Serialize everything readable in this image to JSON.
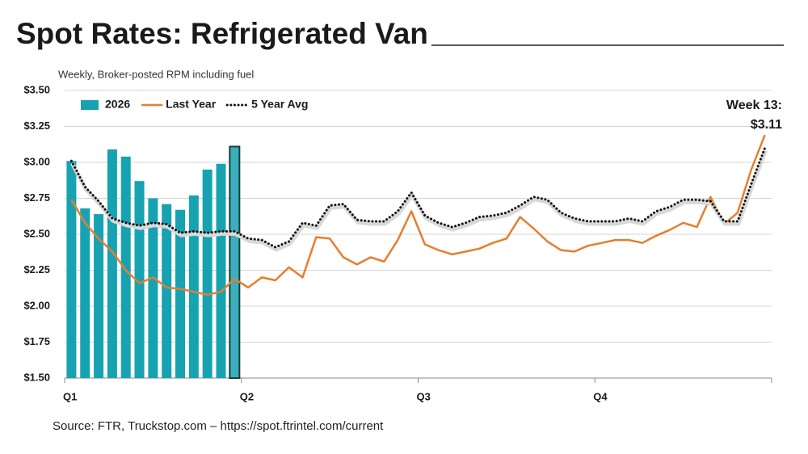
{
  "chart_data": {
    "type": "combo",
    "title": "Spot Rates: Refrigerated Van",
    "subtitle": "Weekly, Broker-posted RPM including fuel",
    "source": "Source: FTR, Truckstop.com – https://spot.ftrintel.com/current",
    "x": [
      1,
      2,
      3,
      4,
      5,
      6,
      7,
      8,
      9,
      10,
      11,
      12,
      13,
      14,
      15,
      16,
      17,
      18,
      19,
      20,
      21,
      22,
      23,
      24,
      25,
      26,
      27,
      28,
      29,
      30,
      31,
      32,
      33,
      34,
      35,
      36,
      37,
      38,
      39,
      40,
      41,
      42,
      43,
      44,
      45,
      46,
      47,
      48,
      49,
      50,
      51,
      52
    ],
    "xlim": [
      0.5,
      52.5
    ],
    "xticks": [
      {
        "value": 0.5,
        "label": "Q1"
      },
      {
        "value": 13.5,
        "label": "Q2"
      },
      {
        "value": 26.5,
        "label": "Q3"
      },
      {
        "value": 39.5,
        "label": "Q4"
      }
    ],
    "ylim": [
      1.5,
      3.5
    ],
    "yticks": [
      {
        "value": 1.5,
        "label": "$1.50"
      },
      {
        "value": 1.75,
        "label": "$1.75"
      },
      {
        "value": 2.0,
        "label": "$2.00"
      },
      {
        "value": 2.25,
        "label": "$2.25"
      },
      {
        "value": 2.5,
        "label": "$2.50"
      },
      {
        "value": 2.75,
        "label": "$2.75"
      },
      {
        "value": 3.0,
        "label": "$3.00"
      },
      {
        "value": 3.25,
        "label": "$3.25"
      },
      {
        "value": 3.5,
        "label": "$3.50"
      }
    ],
    "grid": true,
    "legend": "top-left",
    "series": [
      {
        "name": "2026",
        "type": "bar",
        "color": "#17a2b1",
        "values": [
          3.01,
          2.68,
          2.64,
          3.09,
          3.04,
          2.87,
          2.75,
          2.71,
          2.67,
          2.77,
          2.95,
          2.99,
          3.11,
          null,
          null,
          null,
          null,
          null,
          null,
          null,
          null,
          null,
          null,
          null,
          null,
          null,
          null,
          null,
          null,
          null,
          null,
          null,
          null,
          null,
          null,
          null,
          null,
          null,
          null,
          null,
          null,
          null,
          null,
          null,
          null,
          null,
          null,
          null,
          null,
          null,
          null,
          null
        ]
      },
      {
        "name": "Last Year",
        "type": "line",
        "color": "#e67e2e",
        "values": [
          2.74,
          2.58,
          2.47,
          2.38,
          2.25,
          2.16,
          2.2,
          2.13,
          2.12,
          2.1,
          2.08,
          2.1,
          2.19,
          2.13,
          2.2,
          2.18,
          2.27,
          2.2,
          2.48,
          2.47,
          2.34,
          2.29,
          2.34,
          2.31,
          2.46,
          2.66,
          2.43,
          2.39,
          2.36,
          2.38,
          2.4,
          2.44,
          2.47,
          2.62,
          2.54,
          2.45,
          2.39,
          2.38,
          2.42,
          2.44,
          2.46,
          2.46,
          2.44,
          2.49,
          2.53,
          2.58,
          2.55,
          2.76,
          2.57,
          2.65,
          2.95,
          3.19
        ]
      },
      {
        "name": "5 Year Avg",
        "type": "dotted",
        "color": "#111111",
        "values": [
          3.01,
          2.83,
          2.73,
          2.61,
          2.58,
          2.56,
          2.58,
          2.57,
          2.51,
          2.52,
          2.51,
          2.52,
          2.52,
          2.47,
          2.46,
          2.41,
          2.45,
          2.58,
          2.56,
          2.7,
          2.71,
          2.6,
          2.59,
          2.59,
          2.66,
          2.79,
          2.63,
          2.58,
          2.55,
          2.58,
          2.62,
          2.63,
          2.65,
          2.7,
          2.76,
          2.74,
          2.65,
          2.61,
          2.59,
          2.59,
          2.59,
          2.61,
          2.59,
          2.66,
          2.69,
          2.74,
          2.74,
          2.73,
          2.59,
          2.59,
          2.85,
          3.1
        ]
      }
    ],
    "annotation": {
      "lines": [
        "Week 13:",
        "$3.11"
      ],
      "x": 13,
      "color": "#1e3b3f"
    }
  }
}
